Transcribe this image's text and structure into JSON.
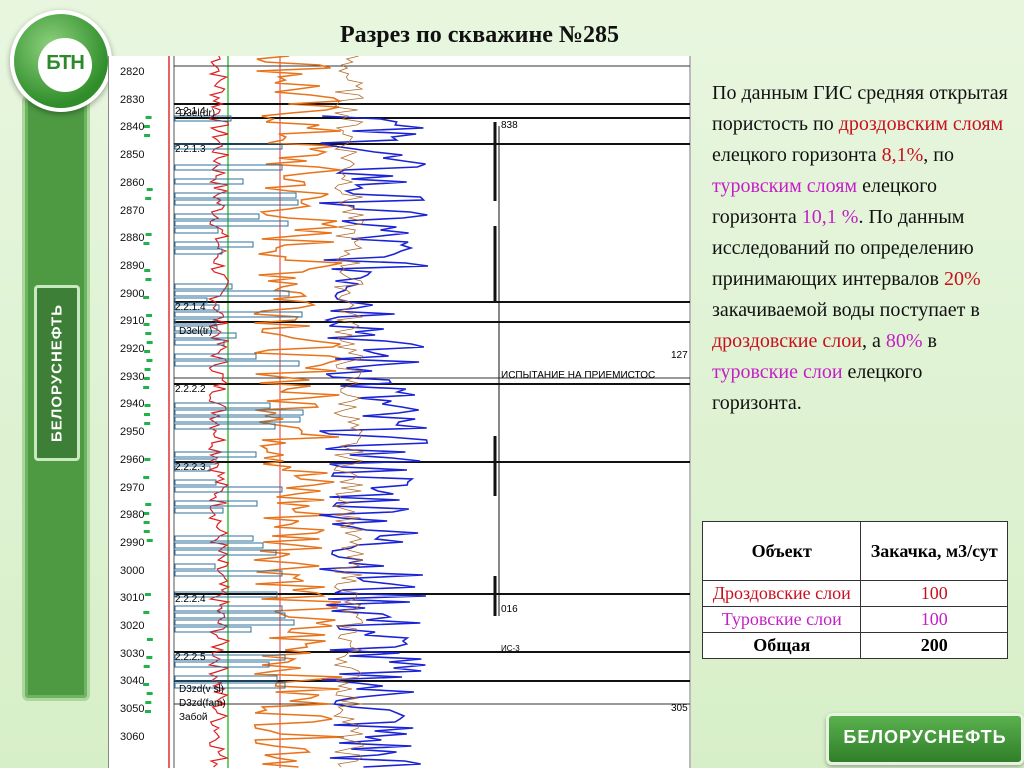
{
  "title": "Разрез по скважине №285",
  "logo": {
    "text": "БТН",
    "icon": "logo-emblem-icon"
  },
  "side_brand": "БЕЛОРУСНЕФТЬ",
  "footer_brand": "БЕЛОРУСНЕФТЬ",
  "depth_ticks": [
    "2820",
    "2830",
    "2840",
    "2850",
    "2860",
    "2870",
    "2880",
    "2890",
    "2900",
    "2910",
    "2920",
    "2930",
    "2940",
    "2950",
    "2960",
    "2970",
    "2980",
    "2990",
    "3000",
    "3010",
    "3020",
    "3030",
    "3040",
    "3050",
    "3060"
  ],
  "log_labels": {
    "layer_1": "2.2.1.4",
    "layer_2": "2.2.1.3",
    "layer_3": "2.2.1.4",
    "layer_4": "2.2.2.2",
    "layer_5": "2.2.2.3",
    "layer_6": "2.2.2.4",
    "layer_7": "2.2.2.5",
    "strat_1": "D3el(dr)",
    "strat_2": "D3el(tr)",
    "strat_3": "D3zd(v sl)",
    "strat_4": "D3zd(fam)",
    "zaboi": "Забой",
    "interval_top": "838",
    "interval_mid": "127",
    "test_label": "ИСПЫТАНИЕ НА ПРИЕМИСТОС",
    "interval_bot": "016",
    "is3": "ИС-3",
    "bottom_val": "305"
  },
  "paragraph": {
    "p1": "По данным ГИС средняя открытая пористость по ",
    "p1_red": "дроздовским слоям",
    "p2": " елецкого горизонта ",
    "p2_red": "8,1%",
    "p3": ", по ",
    "p3_pink": "туровским слоям",
    "p4": " елецкого горизонта ",
    "p4_pink": "10,1 %",
    "p5": ". По данным исследований по определению принимающих интервалов ",
    "p5_red": "20%",
    "p6": " закачиваемой воды поступает в ",
    "p6_red": "дроздовские слои",
    "p7": ", а ",
    "p7_pink": "80%",
    "p8": " в ",
    "p8_pink": "туровские слои",
    "p9": " елецкого горизонта."
  },
  "table": {
    "headers": [
      "Объект",
      "Закачка, м3/сут"
    ],
    "rows": [
      {
        "object": "Дроздовские слои",
        "value": "100"
      },
      {
        "object": "Туровские слои",
        "value": "100"
      },
      {
        "object": "Общая",
        "value": "200"
      }
    ]
  },
  "colors": {
    "red": "#c8101e",
    "pink": "#c41fc6",
    "brand_green": "#3d7f36"
  }
}
